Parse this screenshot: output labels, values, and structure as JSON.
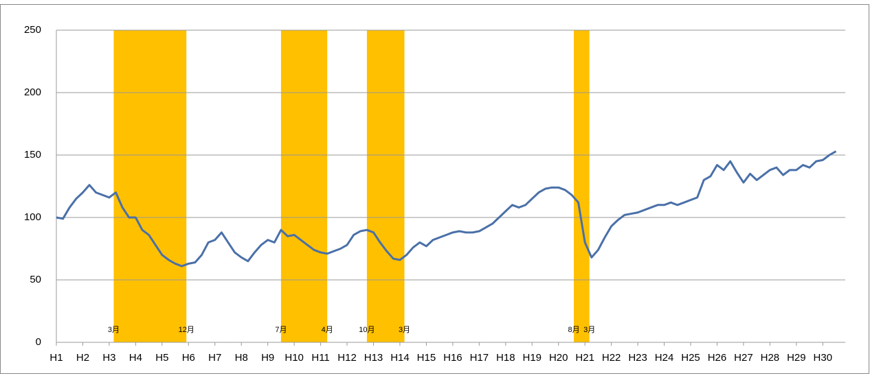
{
  "chart_data": {
    "type": "line",
    "x": [
      1,
      1.25,
      1.5,
      1.75,
      2,
      2.25,
      2.5,
      2.75,
      3,
      3.25,
      3.5,
      3.75,
      4,
      4.25,
      4.5,
      4.75,
      5,
      5.25,
      5.5,
      5.75,
      6,
      6.25,
      6.5,
      6.75,
      7,
      7.25,
      7.5,
      7.75,
      8,
      8.25,
      8.5,
      8.75,
      9,
      9.25,
      9.5,
      9.75,
      10,
      10.25,
      10.5,
      10.75,
      11,
      11.25,
      11.5,
      11.75,
      12,
      12.25,
      12.5,
      12.75,
      13,
      13.25,
      13.5,
      13.75,
      14,
      14.25,
      14.5,
      14.75,
      15,
      15.25,
      15.5,
      15.75,
      16,
      16.25,
      16.5,
      16.75,
      17,
      17.25,
      17.5,
      17.75,
      18,
      18.25,
      18.5,
      18.75,
      19,
      19.25,
      19.5,
      19.75,
      20,
      20.25,
      20.5,
      20.75,
      21,
      21.25,
      21.5,
      21.75,
      22,
      22.25,
      22.5,
      22.75,
      23,
      23.25,
      23.5,
      23.75,
      24,
      24.25,
      24.5,
      24.75,
      25,
      25.25,
      25.5,
      25.75,
      26,
      26.25,
      26.5,
      26.75,
      27,
      27.25,
      27.5,
      27.75,
      28,
      28.25,
      28.5,
      28.75,
      29,
      29.25,
      29.5,
      29.75,
      30,
      30.25,
      30.5
    ],
    "series": [
      {
        "color": "#4a70a8",
        "values": [
          100,
          99,
          108,
          115,
          120,
          126,
          120,
          118,
          116,
          120,
          108,
          100,
          100,
          90,
          86,
          78,
          70,
          66,
          63,
          61,
          63,
          64,
          70,
          80,
          82,
          88,
          80,
          72,
          68,
          65,
          72,
          78,
          82,
          80,
          90,
          85,
          86,
          82,
          78,
          74,
          72,
          71,
          73,
          75,
          78,
          86,
          89,
          90,
          88,
          80,
          73,
          67,
          66,
          70,
          76,
          80,
          77,
          82,
          84,
          86,
          88,
          89,
          88,
          88,
          89,
          92,
          95,
          100,
          105,
          110,
          108,
          110,
          115,
          120,
          123,
          124,
          124,
          122,
          118,
          112,
          80,
          68,
          74,
          84,
          93,
          98,
          102,
          103,
          104,
          106,
          108,
          110,
          110,
          112,
          110,
          112,
          114,
          116,
          130,
          133,
          142,
          138,
          145,
          136,
          128,
          135,
          130,
          134,
          138,
          140,
          134,
          138,
          138,
          142,
          140,
          145,
          146,
          150,
          153
        ]
      }
    ],
    "xlim": [
      1,
      30.85
    ],
    "xticks": [
      {
        "value": 1,
        "label": "H1"
      },
      {
        "value": 2,
        "label": "H2"
      },
      {
        "value": 3,
        "label": "H3"
      },
      {
        "value": 4,
        "label": "H4"
      },
      {
        "value": 5,
        "label": "H5"
      },
      {
        "value": 6,
        "label": "H6"
      },
      {
        "value": 7,
        "label": "H7"
      },
      {
        "value": 8,
        "label": "H8"
      },
      {
        "value": 9,
        "label": "H9"
      },
      {
        "value": 10,
        "label": "H10"
      },
      {
        "value": 11,
        "label": "H11"
      },
      {
        "value": 12,
        "label": "H12"
      },
      {
        "value": 13,
        "label": "H13"
      },
      {
        "value": 14,
        "label": "H14"
      },
      {
        "value": 15,
        "label": "H15"
      },
      {
        "value": 16,
        "label": "H16"
      },
      {
        "value": 17,
        "label": "H17"
      },
      {
        "value": 18,
        "label": "H18"
      },
      {
        "value": 19,
        "label": "H19"
      },
      {
        "value": 20,
        "label": "H20"
      },
      {
        "value": 21,
        "label": "H21"
      },
      {
        "value": 22,
        "label": "H22"
      },
      {
        "value": 23,
        "label": "H23"
      },
      {
        "value": 24,
        "label": "H24"
      },
      {
        "value": 25,
        "label": "H25"
      },
      {
        "value": 26,
        "label": "H26"
      },
      {
        "value": 27,
        "label": "H27"
      },
      {
        "value": 28,
        "label": "H28"
      },
      {
        "value": 29,
        "label": "H29"
      },
      {
        "value": 30,
        "label": "H30"
      }
    ],
    "ylim": [
      0,
      250
    ],
    "yticks": [
      0,
      50,
      100,
      150,
      200,
      250
    ],
    "grid": true,
    "band_color": "#ffc000",
    "bands": [
      {
        "start": 3.17,
        "end": 5.92,
        "start_label": "3月",
        "end_label": "12月"
      },
      {
        "start": 9.5,
        "end": 11.25,
        "start_label": "7月",
        "end_label": "4月"
      },
      {
        "start": 12.75,
        "end": 14.17,
        "start_label": "10月",
        "end_label": "3月"
      },
      {
        "start": 20.58,
        "end": 21.17,
        "start_label": "8月",
        "end_label": "3月"
      }
    ]
  }
}
